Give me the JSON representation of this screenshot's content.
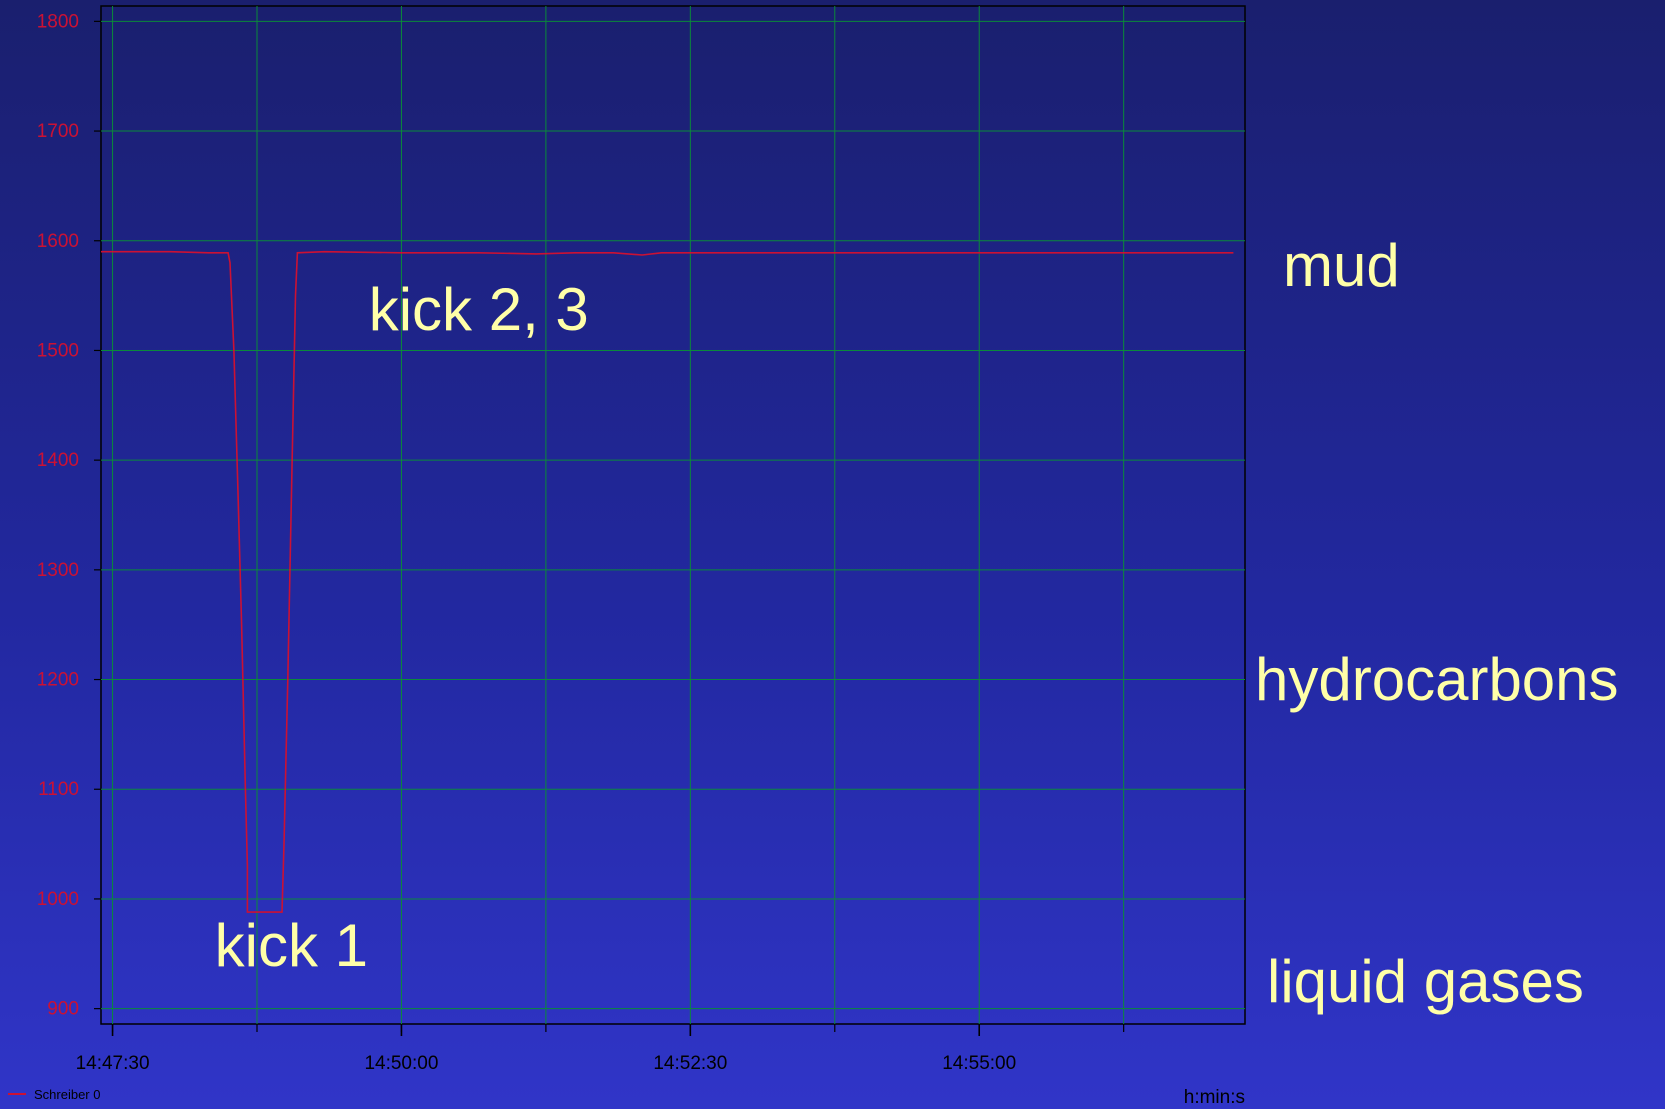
{
  "chart_data": {
    "type": "line",
    "title": "",
    "xlabel": "h:min:s",
    "ylabel": "",
    "ylim": [
      886,
      1814
    ],
    "yticks": [
      900,
      1000,
      1100,
      1200,
      1300,
      1400,
      1500,
      1600,
      1700,
      1800
    ],
    "xlim": [
      "14:47:24",
      "14:57:18"
    ],
    "xticks": [
      "14:47:30",
      "14:50:00",
      "14:52:30",
      "14:55:00"
    ],
    "grid": true,
    "legend_position": "bottom-left",
    "series": [
      {
        "name": "Schreiber 0",
        "color": "#cc1133",
        "points": [
          [
            "14:47:24",
            1590
          ],
          [
            "14:47:40",
            1590
          ],
          [
            "14:48:00",
            1590
          ],
          [
            "14:48:20",
            1589
          ],
          [
            "14:48:30",
            1589
          ],
          [
            "14:48:31",
            1580
          ],
          [
            "14:48:33",
            1500
          ],
          [
            "14:48:35",
            1380
          ],
          [
            "14:48:37",
            1250
          ],
          [
            "14:48:39",
            1100
          ],
          [
            "14:48:40",
            1030
          ],
          [
            "14:48:40",
            988
          ],
          [
            "14:48:58",
            988
          ],
          [
            "14:48:59",
            1050
          ],
          [
            "14:49:01",
            1200
          ],
          [
            "14:49:03",
            1380
          ],
          [
            "14:49:05",
            1550
          ],
          [
            "14:49:06",
            1589
          ],
          [
            "14:49:20",
            1590
          ],
          [
            "14:50:00",
            1589
          ],
          [
            "14:50:40",
            1589
          ],
          [
            "14:51:10",
            1588
          ],
          [
            "14:51:30",
            1589
          ],
          [
            "14:51:50",
            1589
          ],
          [
            "14:52:05",
            1587
          ],
          [
            "14:52:15",
            1589
          ],
          [
            "14:53:00",
            1589
          ],
          [
            "14:54:00",
            1589
          ],
          [
            "14:55:00",
            1589
          ],
          [
            "14:56:00",
            1589
          ],
          [
            "14:57:12",
            1589
          ]
        ]
      }
    ],
    "annotations": [
      {
        "text": "kick 1",
        "x": "14:48:23",
        "y": 950
      },
      {
        "text": "kick 2, 3",
        "x": "14:49:43",
        "y": 1530
      }
    ],
    "colors": {
      "axis_tick_labels_y": "#cc1133",
      "axis_tick_labels_x": "#000000",
      "grid": "#0a8a3a",
      "annotation_text": "#ffffa8"
    }
  },
  "side_labels": {
    "mud": "mud",
    "hydrocarbons": "hydrocarbons",
    "liquid_gases": "liquid gases"
  }
}
